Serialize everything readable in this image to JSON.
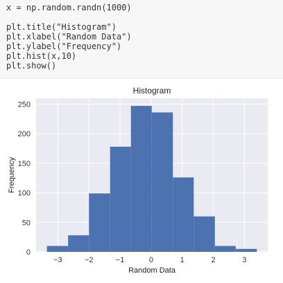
{
  "code": {
    "lines": [
      "x = np.random.randn(1000)",
      "",
      "plt.title(\"Histogram\")",
      "plt.xlabel(\"Random Data\")",
      "plt.ylabel(\"Frequency\")",
      "plt.hist(x,10)",
      "plt.show()"
    ]
  },
  "colors": {
    "plot_background": "#eaeaf2",
    "grid": "#ffffff",
    "bar_fill": "#4c72b0",
    "code_background": "#f7f7f7"
  },
  "chart_data": {
    "type": "bar",
    "title": "Histogram",
    "xlabel": "Random Data",
    "ylabel": "Frequency",
    "bin_edges": [
      -3.35,
      -2.67,
      -2.0,
      -1.32,
      -0.65,
      0.02,
      0.7,
      1.37,
      2.05,
      2.72,
      3.4
    ],
    "values": [
      10,
      28,
      99,
      178,
      247,
      236,
      126,
      60,
      10,
      5
    ],
    "xlim": [
      -3.7,
      3.75
    ],
    "ylim": [
      0,
      260
    ],
    "xticks": [
      -3,
      -2,
      -1,
      0,
      1,
      2,
      3
    ],
    "yticks": [
      0,
      50,
      100,
      150,
      200,
      250
    ],
    "grid": true
  }
}
